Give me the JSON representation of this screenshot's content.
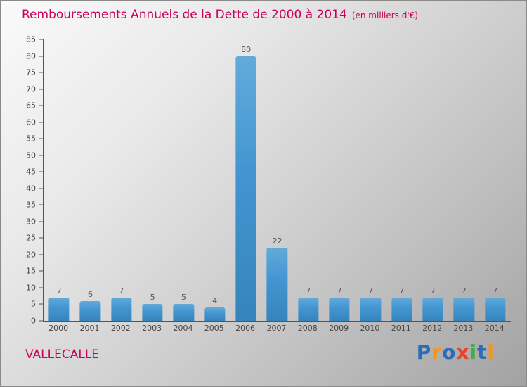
{
  "header": {
    "title": "Remboursements Annuels de la Dette de 2000 à 2014",
    "subtitle": "(en milliers d'€)"
  },
  "chart_data": {
    "type": "bar",
    "title": "Remboursements Annuels de la Dette de 2000 à 2014",
    "subtitle": "(en milliers d'€)",
    "categories": [
      "2000",
      "2001",
      "2002",
      "2003",
      "2004",
      "2005",
      "2006",
      "2007",
      "2008",
      "2009",
      "2010",
      "2011",
      "2012",
      "2013",
      "2014"
    ],
    "values": [
      7,
      6,
      7,
      5,
      5,
      4,
      80,
      22,
      7,
      7,
      7,
      7,
      7,
      7,
      7
    ],
    "xlabel": "",
    "ylabel": "",
    "ylim": [
      0,
      85
    ],
    "ytick_step": 5,
    "grid": false,
    "legend": "none",
    "value_labels": true,
    "bar_color": "#4295d1"
  },
  "footer": {
    "org_name": "VALLECALLE"
  },
  "logo": {
    "name": "Proxiti",
    "letters": [
      {
        "char": "P",
        "color": "#2b6cb8"
      },
      {
        "char": "r",
        "color": "#f7941d"
      },
      {
        "char": "o",
        "color": "#2b6cb8"
      },
      {
        "char": "x",
        "color": "#e8412c"
      },
      {
        "char": "i",
        "color": "#3fae49"
      },
      {
        "char": "t",
        "color": "#2b6cb8"
      },
      {
        "char": "i",
        "color": "#f7941d"
      }
    ]
  },
  "colors": {
    "accent": "#cc005c",
    "axis": "#555555",
    "tick_text": "#444444",
    "value_text": "#555555"
  }
}
